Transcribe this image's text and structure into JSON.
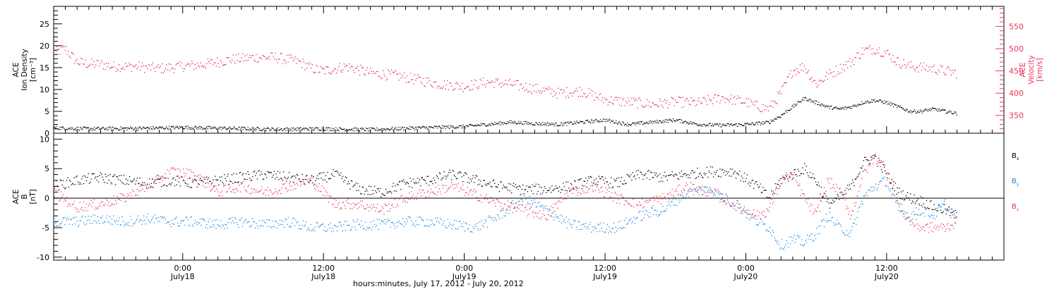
{
  "chart_data": [
    {
      "type": "scatter",
      "panel": "top",
      "x_unit": "hours since 2012-07-17 00:00",
      "xlim": [
        13,
        94
      ],
      "left_axis": {
        "label_lines": [
          "ACE",
          "Ion Density",
          "[cm⁻³]"
        ],
        "ylim": [
          0,
          29
        ],
        "ticks": [
          0,
          5,
          10,
          15,
          20,
          25
        ],
        "color": "#000000"
      },
      "right_axis": {
        "label_lines": [
          "ACE",
          "Velocity",
          "[km/s]"
        ],
        "ylim": [
          310,
          595
        ],
        "ticks": [
          350,
          400,
          450,
          500,
          550
        ],
        "color": "#e8365d"
      },
      "series": [
        {
          "axis": "left",
          "color": "#000000",
          "x": [
            13,
            16,
            20,
            24,
            28,
            32,
            36,
            40,
            44,
            48,
            50,
            52,
            54,
            56,
            58,
            60,
            62,
            64,
            66,
            68,
            70,
            72,
            73,
            74,
            75,
            76,
            77,
            78,
            79,
            80,
            81,
            82,
            83,
            84,
            85,
            86,
            87,
            88,
            89,
            90
          ],
          "y": [
            1.2,
            1.0,
            1.1,
            1.3,
            1.1,
            0.9,
            1.0,
            0.8,
            1.2,
            1.5,
            2.0,
            2.5,
            2.2,
            2.0,
            2.5,
            3.0,
            2.0,
            2.5,
            3.0,
            2.0,
            1.8,
            2.0,
            2.2,
            2.5,
            4.0,
            6.0,
            8.0,
            7.0,
            6.0,
            5.5,
            6.0,
            7.0,
            7.5,
            7.0,
            6.0,
            5.0,
            5.0,
            5.5,
            5.0,
            4.5
          ]
        },
        {
          "axis": "right",
          "color": "#e8365d",
          "x": [
            13,
            14,
            15,
            16,
            17,
            18,
            20,
            22,
            24,
            26,
            28,
            30,
            32,
            34,
            35,
            36,
            38,
            40,
            42,
            44,
            46,
            48,
            50,
            52,
            54,
            56,
            58,
            60,
            62,
            64,
            66,
            68,
            70,
            72,
            73,
            74,
            75,
            76,
            77,
            78,
            79,
            80,
            81,
            82,
            83,
            84,
            85,
            86,
            88,
            90
          ],
          "y": [
            490,
            500,
            470,
            465,
            465,
            460,
            460,
            455,
            460,
            465,
            475,
            480,
            480,
            470,
            455,
            450,
            460,
            445,
            440,
            430,
            420,
            415,
            425,
            420,
            410,
            400,
            405,
            385,
            380,
            375,
            380,
            378,
            390,
            380,
            370,
            365,
            400,
            450,
            460,
            420,
            440,
            455,
            470,
            495,
            500,
            490,
            470,
            460,
            455,
            445
          ]
        }
      ]
    },
    {
      "type": "scatter",
      "panel": "bottom",
      "x_unit": "hours since 2012-07-17 00:00",
      "xlim": [
        13,
        94
      ],
      "left_axis": {
        "label_lines": [
          "ACE",
          "B",
          "[nT]"
        ],
        "ylim": [
          -10.5,
          11
        ],
        "ticks": [
          -10,
          -5,
          0,
          5,
          10
        ]
      },
      "zero_line": true,
      "legend": [
        {
          "text": "B",
          "sub": "x",
          "color": "#000000"
        },
        {
          "text": "B",
          "sub": "y",
          "color": "#1e88e5"
        },
        {
          "text": "B",
          "sub": "z",
          "color": "#e8365d"
        }
      ],
      "series": [
        {
          "name": "Bx",
          "color": "#000000",
          "x": [
            13,
            15,
            17,
            19,
            21,
            23,
            25,
            27,
            29,
            31,
            33,
            35,
            37,
            39,
            41,
            43,
            45,
            47,
            49,
            51,
            53,
            55,
            57,
            59,
            61,
            63,
            65,
            67,
            69,
            71,
            73,
            74,
            75,
            76,
            77,
            78,
            79,
            80,
            81,
            82,
            83,
            84,
            85,
            86,
            87,
            88,
            89,
            90
          ],
          "y": [
            2,
            3,
            3.5,
            3,
            2.5,
            3,
            2.5,
            3,
            3.5,
            4,
            3.5,
            3,
            4,
            1.5,
            1,
            2.5,
            3,
            4,
            3,
            2,
            1.5,
            1.5,
            2,
            3,
            2.5,
            4,
            3.5,
            4,
            4.5,
            4.5,
            2,
            0,
            3,
            4,
            5,
            3,
            -1,
            0,
            2,
            6,
            7,
            4,
            1,
            0,
            -0.5,
            -1.5,
            -2,
            -3
          ]
        },
        {
          "name": "By",
          "color": "#1e88e5",
          "x": [
            13,
            15,
            17,
            19,
            21,
            23,
            25,
            27,
            29,
            31,
            33,
            35,
            37,
            39,
            41,
            43,
            45,
            47,
            49,
            51,
            53,
            55,
            57,
            59,
            61,
            63,
            65,
            67,
            69,
            71,
            73,
            74,
            75,
            76,
            77,
            78,
            79,
            80,
            81,
            82,
            83,
            84,
            85,
            86,
            87,
            88,
            89,
            90
          ],
          "y": [
            -4,
            -4,
            -3.5,
            -4,
            -3.5,
            -4,
            -4,
            -4.5,
            -4,
            -4.5,
            -4,
            -5,
            -5,
            -4.5,
            -4.5,
            -4,
            -4,
            -4.5,
            -5,
            -3,
            0,
            -2,
            -4.5,
            -5,
            -5,
            -3,
            -2,
            1,
            1.5,
            -1,
            -4,
            -5,
            -8,
            -7,
            -7.5,
            -6,
            -3,
            -5,
            -6,
            0,
            2,
            3,
            -2,
            -3,
            -2,
            -3,
            -1,
            -4
          ]
        },
        {
          "name": "Bz",
          "color": "#e8365d",
          "x": [
            13,
            15,
            17,
            19,
            21,
            23,
            25,
            27,
            29,
            31,
            33,
            35,
            37,
            39,
            41,
            43,
            45,
            47,
            49,
            51,
            53,
            55,
            57,
            59,
            61,
            63,
            65,
            67,
            69,
            71,
            73,
            74,
            75,
            76,
            77,
            78,
            79,
            80,
            81,
            82,
            83,
            84,
            85,
            86,
            87,
            88,
            89,
            90
          ],
          "y": [
            1,
            -1.5,
            -1,
            0,
            2,
            4.5,
            4,
            1,
            2,
            1,
            2,
            3,
            -1,
            -1,
            -2,
            0,
            1,
            2,
            0.5,
            -1,
            -2,
            -3,
            1,
            2,
            0,
            -1,
            0,
            2,
            1,
            -1,
            -3,
            -2,
            3,
            4,
            0,
            -3,
            3,
            1,
            -3,
            4,
            7,
            5,
            -1,
            -4,
            -5,
            -5,
            -5,
            -4
          ]
        }
      ]
    }
  ],
  "x_axis": {
    "ticks": [
      {
        "hour": 24,
        "time": "0:00",
        "date": "July18"
      },
      {
        "hour": 36,
        "time": "12:00",
        "date": "July18"
      },
      {
        "hour": 48,
        "time": "0:00",
        "date": "July19"
      },
      {
        "hour": 60,
        "time": "12:00",
        "date": "July19"
      },
      {
        "hour": 72,
        "time": "0:00",
        "date": "July20"
      },
      {
        "hour": 84,
        "time": "12:00",
        "date": "July20"
      }
    ],
    "title": "hours:minutes, July 17, 2012 - July 20, 2012"
  }
}
